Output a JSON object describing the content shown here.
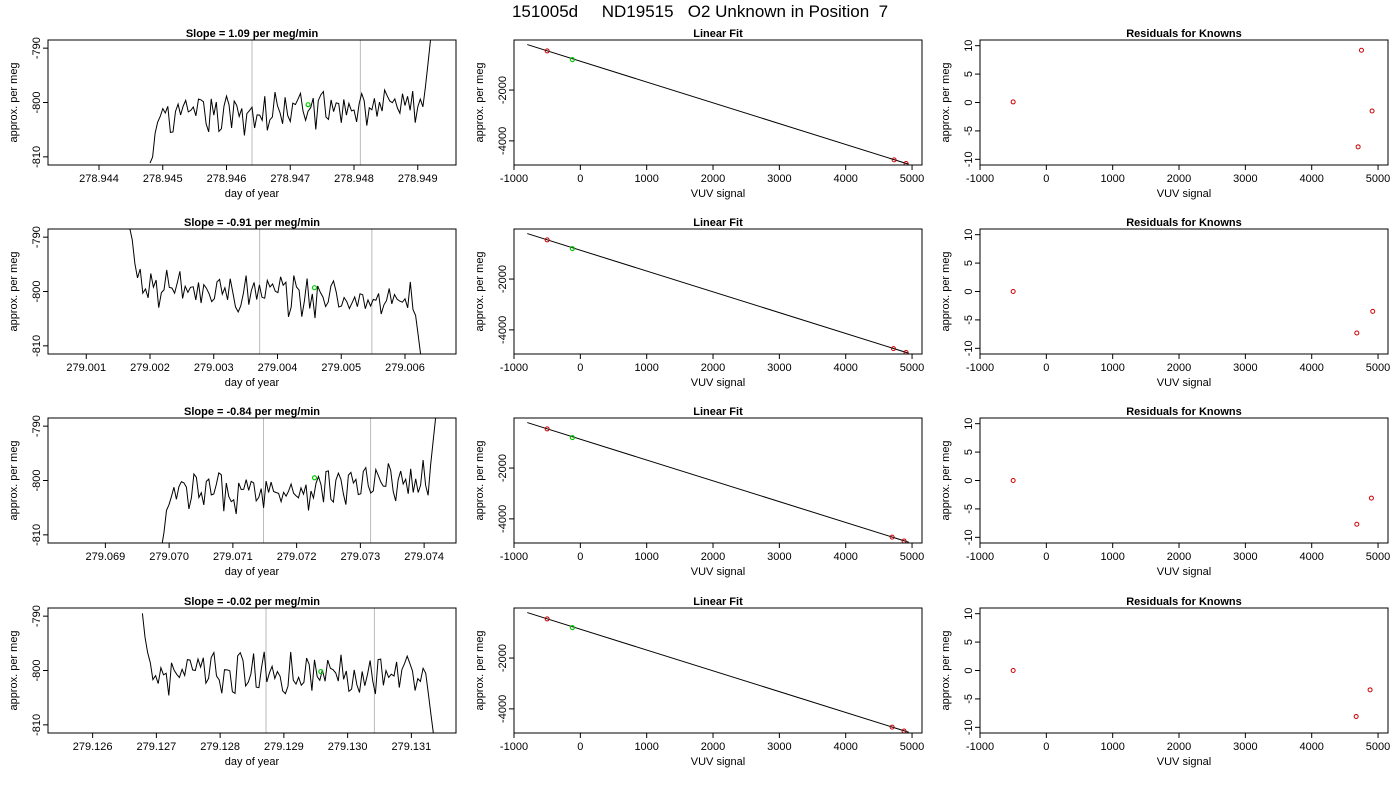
{
  "title": "151005d     ND19515   O2 Unknown in Position  7",
  "colors": {
    "line": "#000000",
    "known": "#cc0000",
    "unknown": "#00cc00",
    "vline": "#bbbbbb"
  },
  "chart_data": [
    {
      "type": "line",
      "panel": "slope",
      "row": 1,
      "title": "Slope =  1.09  per meg/min",
      "xlabel": "day of year",
      "ylabel": "approx. per meg",
      "xlim": [
        278.9432,
        278.9496
      ],
      "ylim": [
        -811.5,
        -788.5
      ],
      "x_ticks": [
        "278.944",
        "278.945",
        "278.946",
        "278.947",
        "278.948",
        "278.949"
      ],
      "y_ticks": [
        "-790",
        "-800",
        "-810"
      ],
      "t_start": 278.9448,
      "t_end": 278.9492,
      "start_y": -812,
      "end_y": -788.5,
      "pre_n": 4,
      "post_n": 3,
      "vlines": [
        278.9464,
        278.9481
      ],
      "unknown_point": {
        "x": 278.94728,
        "y": -800.4
      },
      "mean_y": -801.5,
      "trend_span": 3
    },
    {
      "type": "scatter",
      "panel": "fit",
      "row": 1,
      "title": "Linear Fit",
      "xlabel": "VUV signal",
      "ylabel": "approx. per meg",
      "xlim": [
        -1000,
        5150
      ],
      "ylim": [
        -4950,
        -30
      ],
      "x_ticks": [
        "-1000",
        "0",
        "1000",
        "2000",
        "3000",
        "4000",
        "5000"
      ],
      "y_ticks": [
        "-2000",
        "-4000"
      ],
      "fit_line": [
        [
          -800,
          -210
        ],
        [
          4950,
          -4920
        ]
      ],
      "knowns": [
        [
          -500,
          -460
        ],
        [
          4730,
          -4750
        ],
        [
          4910,
          -4890
        ]
      ],
      "unknowns": [
        [
          -120,
          -800
        ]
      ]
    },
    {
      "type": "scatter",
      "panel": "residuals",
      "row": 1,
      "title": "Residuals for Knowns",
      "xlabel": "VUV signal",
      "ylabel": "approx. per meg",
      "xlim": [
        -1000,
        5150
      ],
      "ylim": [
        -11,
        11
      ],
      "x_ticks": [
        "-1000",
        "0",
        "1000",
        "2000",
        "3000",
        "4000",
        "5000"
      ],
      "y_ticks": [
        "10",
        "5",
        "0",
        "-5",
        "-10"
      ],
      "knowns": [
        [
          -500,
          0.1
        ],
        [
          4700,
          -7.8
        ],
        [
          4750,
          9.2
        ],
        [
          4910,
          -1.5
        ]
      ]
    },
    {
      "type": "line",
      "panel": "slope",
      "row": 2,
      "title": "Slope =  -0.91  per meg/min",
      "xlabel": "day of year",
      "ylabel": "approx. per meg",
      "xlim": [
        279.0004,
        279.0068
      ],
      "ylim": [
        -811.5,
        -788.5
      ],
      "x_ticks": [
        "279.001",
        "279.002",
        "279.003",
        "279.004",
        "279.005",
        "279.006"
      ],
      "y_ticks": [
        "-790",
        "-800",
        "-810"
      ],
      "t_start": 279.00168,
      "t_end": 279.00625,
      "start_y": -788.5,
      "end_y": -812,
      "pre_n": 4,
      "post_n": 3,
      "vlines": [
        279.00372,
        279.00548
      ],
      "unknown_point": {
        "x": 279.00458,
        "y": -799.3
      },
      "mean_y": -800.6,
      "trend_span": -2.8
    },
    {
      "type": "scatter",
      "panel": "fit",
      "row": 2,
      "title": "Linear Fit",
      "xlabel": "VUV signal",
      "ylabel": "approx. per meg",
      "xlim": [
        -1000,
        5150
      ],
      "ylim": [
        -4950,
        -30
      ],
      "x_ticks": [
        "-1000",
        "0",
        "1000",
        "2000",
        "3000",
        "4000",
        "5000"
      ],
      "y_ticks": [
        "-2000",
        "-4000"
      ],
      "fit_line": [
        [
          -800,
          -210
        ],
        [
          4950,
          -4920
        ]
      ],
      "knowns": [
        [
          -500,
          -460
        ],
        [
          4720,
          -4740
        ],
        [
          4910,
          -4890
        ]
      ],
      "unknowns": [
        [
          -120,
          -800
        ]
      ]
    },
    {
      "type": "scatter",
      "panel": "residuals",
      "row": 2,
      "title": "Residuals for Knowns",
      "xlabel": "VUV signal",
      "ylabel": "approx. per meg",
      "xlim": [
        -1000,
        5150
      ],
      "ylim": [
        -11,
        11
      ],
      "x_ticks": [
        "-1000",
        "0",
        "1000",
        "2000",
        "3000",
        "4000",
        "5000"
      ],
      "y_ticks": [
        "10",
        "5",
        "0",
        "-5",
        "-10"
      ],
      "knowns": [
        [
          -500,
          0
        ],
        [
          4680,
          -7.3
        ],
        [
          4920,
          -3.5
        ]
      ]
    },
    {
      "type": "line",
      "panel": "slope",
      "row": 3,
      "title": "Slope =  -0.84  per meg/min",
      "xlabel": "day of year",
      "ylabel": "approx. per meg",
      "xlim": [
        279.0681,
        279.0745
      ],
      "ylim": [
        -811.5,
        -788.5
      ],
      "x_ticks": [
        "279.069",
        "279.070",
        "279.071",
        "279.072",
        "279.073",
        "279.074"
      ],
      "y_ticks": [
        "-790",
        "-800",
        "-810"
      ],
      "t_start": 279.06988,
      "t_end": 279.07418,
      "start_y": -812,
      "end_y": -788.5,
      "pre_n": 4,
      "post_n": 3,
      "vlines": [
        279.07148,
        279.07316
      ],
      "unknown_point": {
        "x": 279.07228,
        "y": -799.5
      },
      "mean_y": -801.5,
      "trend_span": 2.5
    },
    {
      "type": "scatter",
      "panel": "fit",
      "row": 3,
      "title": "Linear Fit",
      "xlabel": "VUV signal",
      "ylabel": "approx. per meg",
      "xlim": [
        -1000,
        5150
      ],
      "ylim": [
        -4950,
        -30
      ],
      "x_ticks": [
        "-1000",
        "0",
        "1000",
        "2000",
        "3000",
        "4000",
        "5000"
      ],
      "y_ticks": [
        "-2000",
        "-4000"
      ],
      "fit_line": [
        [
          -800,
          -210
        ],
        [
          4950,
          -4920
        ]
      ],
      "knowns": [
        [
          -500,
          -460
        ],
        [
          4700,
          -4720
        ],
        [
          4880,
          -4870
        ]
      ],
      "unknowns": [
        [
          -120,
          -800
        ]
      ]
    },
    {
      "type": "scatter",
      "panel": "residuals",
      "row": 3,
      "title": "Residuals for Knowns",
      "xlabel": "VUV signal",
      "ylabel": "approx. per meg",
      "xlim": [
        -1000,
        5150
      ],
      "ylim": [
        -11,
        11
      ],
      "x_ticks": [
        "-1000",
        "0",
        "1000",
        "2000",
        "3000",
        "4000",
        "5000"
      ],
      "y_ticks": [
        "10",
        "5",
        "0",
        "-5",
        "-10"
      ],
      "knowns": [
        [
          -500,
          0
        ],
        [
          4680,
          -7.7
        ],
        [
          4900,
          -3.1
        ]
      ]
    },
    {
      "type": "line",
      "panel": "slope",
      "row": 4,
      "title": "Slope =  -0.02  per meg/min",
      "xlabel": "day of year",
      "ylabel": "approx. per meg",
      "xlim": [
        279.1253,
        279.1317
      ],
      "ylim": [
        -811.5,
        -788.5
      ],
      "x_ticks": [
        "279.126",
        "279.127",
        "279.128",
        "279.129",
        "279.130",
        "279.131"
      ],
      "y_ticks": [
        "-790",
        "-800",
        "-810"
      ],
      "t_start": 279.12678,
      "t_end": 279.13135,
      "start_y": -788.5,
      "end_y": -812,
      "pre_n": 3,
      "post_n": 3,
      "vlines": [
        279.12872,
        279.13042
      ],
      "unknown_point": {
        "x": 279.12958,
        "y": -800.2
      },
      "mean_y": -800.5,
      "trend_span": 0
    },
    {
      "type": "scatter",
      "panel": "fit",
      "row": 4,
      "title": "Linear Fit",
      "xlabel": "VUV signal",
      "ylabel": "approx. per meg",
      "xlim": [
        -1000,
        5150
      ],
      "ylim": [
        -4950,
        -30
      ],
      "x_ticks": [
        "-1000",
        "0",
        "1000",
        "2000",
        "3000",
        "4000",
        "5000"
      ],
      "y_ticks": [
        "-2000",
        "-4000"
      ],
      "fit_line": [
        [
          -800,
          -210
        ],
        [
          4950,
          -4920
        ]
      ],
      "knowns": [
        [
          -500,
          -460
        ],
        [
          4700,
          -4720
        ],
        [
          4880,
          -4870
        ]
      ],
      "unknowns": [
        [
          -120,
          -800
        ]
      ]
    },
    {
      "type": "scatter",
      "panel": "residuals",
      "row": 4,
      "title": "Residuals for Knowns",
      "xlabel": "VUV signal",
      "ylabel": "approx. per meg",
      "xlim": [
        -1000,
        5150
      ],
      "ylim": [
        -11,
        11
      ],
      "x_ticks": [
        "-1000",
        "0",
        "1000",
        "2000",
        "3000",
        "4000",
        "5000"
      ],
      "y_ticks": [
        "10",
        "5",
        "0",
        "-5",
        "-10"
      ],
      "knowns": [
        [
          -500,
          0
        ],
        [
          4670,
          -8.1
        ],
        [
          4880,
          -3.4
        ]
      ]
    }
  ]
}
